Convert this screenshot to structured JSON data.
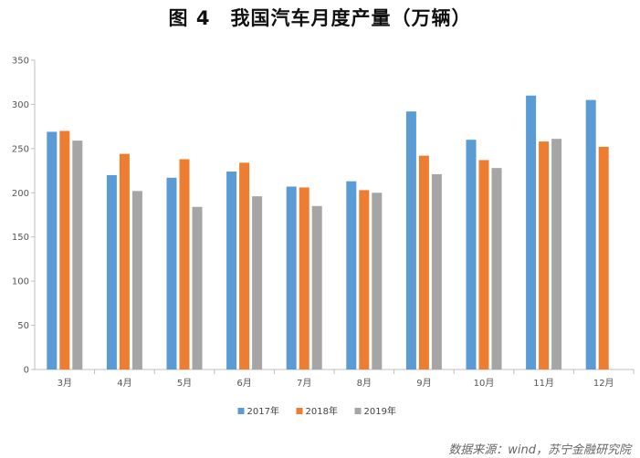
{
  "title": "图 4　我国汽车月度产量（万辆）",
  "source": "数据来源：wind，苏宁金融研究院",
  "chart_data": {
    "type": "bar",
    "title": "图 4　我国汽车月度产量（万辆）",
    "xlabel": "",
    "ylabel": "",
    "categories": [
      "3月",
      "4月",
      "5月",
      "6月",
      "7月",
      "8月",
      "9月",
      "10月",
      "11月",
      "12月"
    ],
    "series": [
      {
        "name": "2017年",
        "color": "#5B9BD5",
        "values": [
          269,
          220,
          217,
          224,
          207,
          213,
          292,
          260,
          310,
          305
        ]
      },
      {
        "name": "2018年",
        "color": "#ED7D31",
        "values": [
          270,
          244,
          238,
          234,
          206,
          203,
          242,
          237,
          258,
          252
        ]
      },
      {
        "name": "2019年",
        "color": "#A5A5A5",
        "values": [
          259,
          202,
          184,
          196,
          185,
          200,
          221,
          228,
          261,
          null
        ]
      }
    ],
    "yticks": [
      0,
      50,
      100,
      150,
      200,
      250,
      300,
      350
    ],
    "ylim": [
      0,
      350
    ],
    "grid": false,
    "legend_position": "bottom"
  }
}
